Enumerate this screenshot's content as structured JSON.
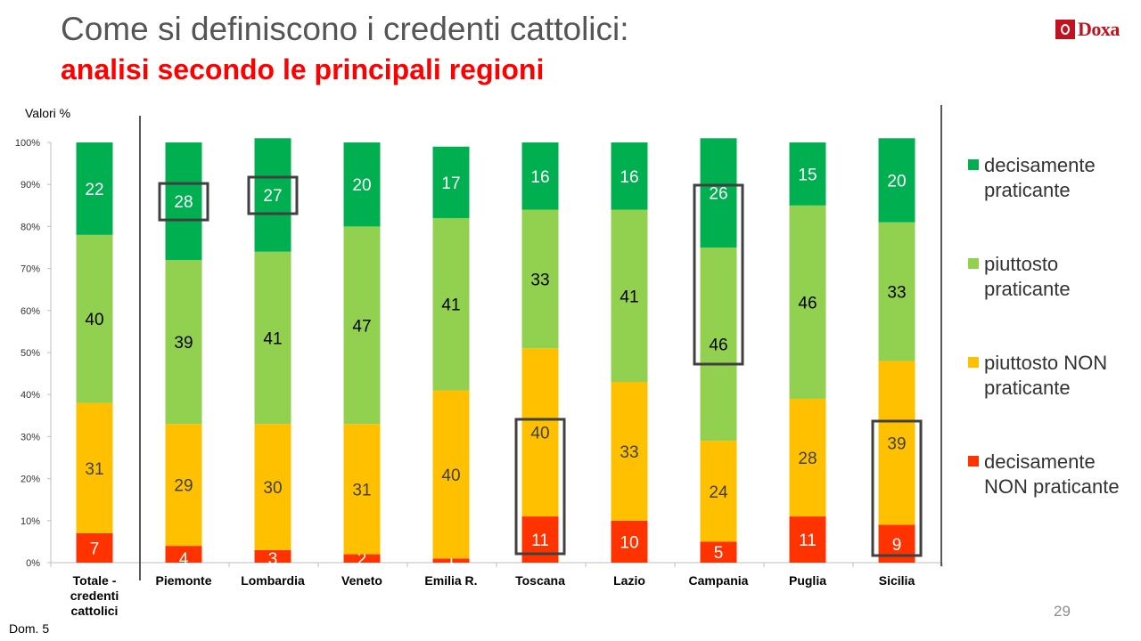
{
  "header": {
    "title": "Come si definiscono i credenti cattolici:",
    "subtitle": "analisi secondo le principali regioni",
    "logo": "Doxa"
  },
  "colors": {
    "title": "#555555",
    "subtitle": "#ff0000",
    "decisamente_praticante": "#00b050",
    "piuttosto_praticante": "#92d050",
    "piuttosto_non_praticante": "#ffc000",
    "decisamente_non_praticante": "#ff3300",
    "highlight_box": "#404040"
  },
  "chart_data": {
    "type": "bar",
    "stacked": true,
    "unit_label": "Valori %",
    "categories": [
      "Totale -\ncredenti\ncattolici",
      "Piemonte",
      "Lombardia",
      "Veneto",
      "Emilia R.",
      "Toscana",
      "Lazio",
      "Campania",
      "Puglia",
      "Sicilia"
    ],
    "ylim": [
      0,
      100
    ],
    "yticks": [
      "0%",
      "10%",
      "20%",
      "30%",
      "40%",
      "50%",
      "60%",
      "70%",
      "80%",
      "90%",
      "100%"
    ],
    "series": [
      {
        "name": "decisamente NON praticante",
        "color": "#ff3300",
        "values": [
          7,
          4,
          3,
          2,
          1,
          11,
          10,
          5,
          11,
          9
        ]
      },
      {
        "name": "piuttosto NON praticante",
        "color": "#ffc000",
        "values": [
          31,
          29,
          30,
          31,
          40,
          40,
          33,
          24,
          28,
          39
        ]
      },
      {
        "name": "piuttosto praticante",
        "color": "#92d050",
        "values": [
          40,
          39,
          41,
          47,
          41,
          33,
          41,
          46,
          46,
          33
        ]
      },
      {
        "name": "decisamente praticante",
        "color": "#00b050",
        "values": [
          22,
          28,
          27,
          20,
          17,
          16,
          16,
          26,
          15,
          20
        ]
      }
    ],
    "highlighted": [
      {
        "category": "Piemonte",
        "series": [
          "decisamente praticante"
        ]
      },
      {
        "category": "Lombardia",
        "series": [
          "decisamente praticante"
        ]
      },
      {
        "category": "Campania",
        "series": [
          "decisamente praticante",
          "piuttosto praticante"
        ]
      },
      {
        "category": "Toscana",
        "series": [
          "decisamente NON praticante",
          "piuttosto NON praticante"
        ]
      },
      {
        "category": "Sicilia",
        "series": [
          "decisamente NON praticante",
          "piuttosto NON praticante"
        ]
      }
    ],
    "legend": [
      {
        "label": "decisamente praticante",
        "color": "#00b050"
      },
      {
        "label": "piuttosto praticante",
        "color": "#92d050"
      },
      {
        "label": "piuttosto NON praticante",
        "color": "#ffc000"
      },
      {
        "label": "decisamente NON praticante",
        "color": "#ff3300"
      }
    ],
    "legend_position": "right"
  },
  "footer": {
    "page_number": "29",
    "footnote": "Dom. 5"
  }
}
